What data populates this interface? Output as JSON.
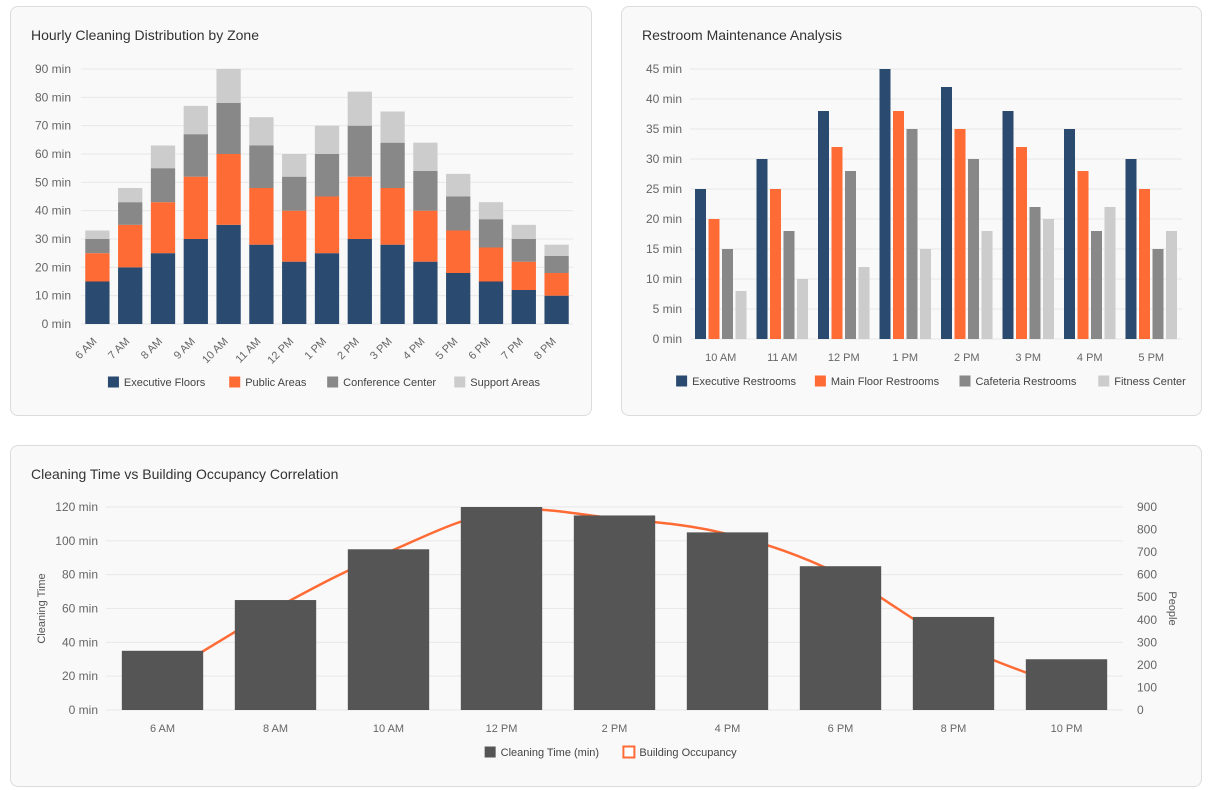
{
  "colors": {
    "executive": "#2a4a6f",
    "public": "#ff6b35",
    "conference": "#888888",
    "support": "#cccccc",
    "bar_dark": "#555555",
    "line": "#ff6b35",
    "grid": "#e8e8e8",
    "tick": "#666666"
  },
  "chart_data": [
    {
      "type": "bar",
      "stacked": true,
      "title": "Hourly Cleaning Distribution by Zone",
      "categories": [
        "6 AM",
        "7 AM",
        "8 AM",
        "9 AM",
        "10 AM",
        "11 AM",
        "12 PM",
        "1 PM",
        "2 PM",
        "3 PM",
        "4 PM",
        "5 PM",
        "6 PM",
        "7 PM",
        "8 PM"
      ],
      "series": [
        {
          "name": "Executive Floors",
          "color": "#2a4a6f",
          "values": [
            15,
            20,
            25,
            30,
            35,
            28,
            22,
            25,
            30,
            28,
            22,
            18,
            15,
            12,
            10
          ]
        },
        {
          "name": "Public Areas",
          "color": "#ff6b35",
          "values": [
            10,
            15,
            18,
            22,
            25,
            20,
            18,
            20,
            22,
            20,
            18,
            15,
            12,
            10,
            8
          ]
        },
        {
          "name": "Conference Center",
          "color": "#888888",
          "values": [
            5,
            8,
            12,
            15,
            18,
            15,
            12,
            15,
            18,
            16,
            14,
            12,
            10,
            8,
            6
          ]
        },
        {
          "name": "Support Areas",
          "color": "#cccccc",
          "values": [
            3,
            5,
            8,
            10,
            12,
            10,
            8,
            10,
            12,
            11,
            10,
            8,
            6,
            5,
            4
          ]
        }
      ],
      "y_ticks": [
        "0 min",
        "10 min",
        "20 min",
        "30 min",
        "40 min",
        "50 min",
        "60 min",
        "70 min",
        "80 min",
        "90 min"
      ],
      "ylim": [
        0,
        90
      ],
      "legend": "bottom",
      "grid": true
    },
    {
      "type": "bar",
      "stacked": false,
      "title": "Restroom Maintenance Analysis",
      "categories": [
        "10 AM",
        "11 AM",
        "12 PM",
        "1 PM",
        "2 PM",
        "3 PM",
        "4 PM",
        "5 PM"
      ],
      "series": [
        {
          "name": "Executive Restrooms",
          "color": "#2a4a6f",
          "values": [
            25,
            30,
            38,
            45,
            42,
            38,
            35,
            30
          ]
        },
        {
          "name": "Main Floor Restrooms",
          "color": "#ff6b35",
          "values": [
            20,
            25,
            32,
            38,
            35,
            32,
            28,
            25
          ]
        },
        {
          "name": "Cafeteria Restrooms",
          "color": "#888888",
          "values": [
            15,
            18,
            28,
            35,
            30,
            22,
            18,
            15
          ]
        },
        {
          "name": "Fitness Center",
          "color": "#cccccc",
          "values": [
            8,
            10,
            12,
            15,
            18,
            20,
            22,
            18
          ]
        }
      ],
      "y_ticks": [
        "0 min",
        "5 min",
        "10 min",
        "15 min",
        "20 min",
        "25 min",
        "30 min",
        "35 min",
        "40 min",
        "45 min"
      ],
      "ylim": [
        0,
        45
      ],
      "legend": "bottom",
      "grid": true
    },
    {
      "type": "bar",
      "title": "Cleaning Time vs Building Occupancy Correlation",
      "categories": [
        "6 AM",
        "8 AM",
        "10 AM",
        "12 PM",
        "2 PM",
        "4 PM",
        "6 PM",
        "8 PM",
        "10 PM"
      ],
      "series": [
        {
          "name": "Cleaning Time (min)",
          "color": "#555555",
          "kind": "bar",
          "axis": "left",
          "values": [
            35,
            65,
            95,
            120,
            115,
            105,
            85,
            55,
            30
          ]
        },
        {
          "name": "Building Occupancy",
          "color": "#ff6b35",
          "kind": "line",
          "axis": "right",
          "values": [
            150,
            450,
            700,
            880,
            850,
            780,
            600,
            300,
            100
          ]
        }
      ],
      "ylabel": "Cleaning Time",
      "y2label": "People",
      "y_ticks": [
        "0 min",
        "20 min",
        "40 min",
        "60 min",
        "80 min",
        "100 min",
        "120 min"
      ],
      "ylim": [
        0,
        120
      ],
      "y2_ticks": [
        "0",
        "100",
        "200",
        "300",
        "400",
        "500",
        "600",
        "700",
        "800",
        "900"
      ],
      "y2lim": [
        0,
        900
      ],
      "legend": "bottom",
      "grid": true
    }
  ]
}
